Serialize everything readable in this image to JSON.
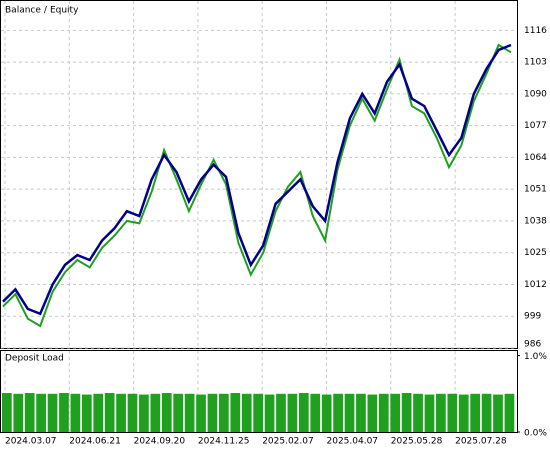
{
  "chart_data": [
    {
      "type": "line",
      "series": [
        {
          "name": "Balance",
          "color": "#00008b",
          "values": [
            1005,
            1010,
            1002,
            1000,
            1012,
            1020,
            1024,
            1022,
            1030,
            1035,
            1042,
            1040,
            1055,
            1065,
            1058,
            1046,
            1055,
            1061,
            1056,
            1033,
            1020,
            1028,
            1045,
            1050,
            1055,
            1044,
            1038,
            1062,
            1080,
            1090,
            1082,
            1095,
            1102,
            1088,
            1085,
            1075,
            1065,
            1072,
            1090,
            1100,
            1108,
            1110
          ]
        },
        {
          "name": "Equity",
          "color": "#1fa01f",
          "values": [
            1003,
            1008,
            998,
            995,
            1009,
            1017,
            1022,
            1019,
            1027,
            1032,
            1038,
            1037,
            1050,
            1067,
            1055,
            1042,
            1053,
            1063,
            1053,
            1029,
            1016,
            1025,
            1042,
            1052,
            1058,
            1040,
            1030,
            1059,
            1077,
            1088,
            1079,
            1092,
            1104,
            1085,
            1082,
            1072,
            1060,
            1069,
            1087,
            1098,
            1110,
            1107
          ]
        }
      ],
      "legend_separator": "/",
      "ylim": [
        986,
        1128
      ],
      "yticks": [
        986,
        999,
        1012,
        1025,
        1038,
        1051,
        1064,
        1077,
        1090,
        1103,
        1116
      ],
      "xtick_labels": [
        "2024.03.07",
        "2024.06.21",
        "2024.09.20",
        "2024.11.25",
        "2025.02.07",
        "2025.04.07",
        "2025.05.28",
        "2025.07.28"
      ],
      "grid": true
    },
    {
      "type": "bar",
      "title": "Deposit Load",
      "color": "#1fa01f",
      "values": [
        0.51,
        0.5,
        0.51,
        0.5,
        0.5,
        0.51,
        0.5,
        0.49,
        0.5,
        0.51,
        0.5,
        0.5,
        0.49,
        0.5,
        0.51,
        0.5,
        0.5,
        0.49,
        0.5,
        0.5,
        0.51,
        0.5,
        0.5,
        0.49,
        0.5,
        0.5,
        0.51,
        0.5,
        0.49,
        0.5,
        0.5,
        0.5,
        0.49,
        0.5,
        0.5,
        0.51,
        0.5,
        0.49,
        0.5,
        0.5,
        0.49,
        0.5,
        0.5,
        0.49,
        0.5
      ],
      "ylim": [
        0,
        1.06
      ],
      "yticks": [
        {
          "value": 1,
          "label": "1.0%"
        },
        {
          "value": 0,
          "label": "0.0%"
        }
      ]
    }
  ]
}
